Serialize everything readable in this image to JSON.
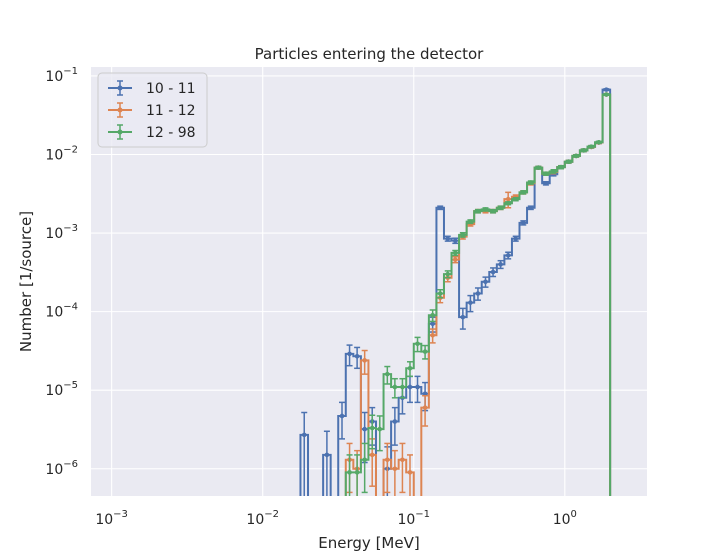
{
  "chart_data": {
    "type": "histogram-step-errorbar",
    "title": "Particles entering the detector",
    "xlabel": "Energy [MeV]",
    "ylabel": "Number [1/source]",
    "xscale": "log",
    "yscale": "log",
    "xlim": [
      0.00073,
      3.5
    ],
    "ylim": [
      4.5e-07,
      0.13
    ],
    "grid": true,
    "legend_position": "top-left",
    "x_ticks": [
      {
        "value": 0.001,
        "base": "10",
        "exp": "−3"
      },
      {
        "value": 0.01,
        "base": "10",
        "exp": "−2"
      },
      {
        "value": 0.1,
        "base": "10",
        "exp": "−1"
      },
      {
        "value": 1,
        "base": "10",
        "exp": "0"
      }
    ],
    "y_ticks": [
      {
        "value": 1e-06,
        "base": "10",
        "exp": "−6"
      },
      {
        "value": 1e-05,
        "base": "10",
        "exp": "−5"
      },
      {
        "value": 0.0001,
        "base": "10",
        "exp": "−4"
      },
      {
        "value": 0.001,
        "base": "10",
        "exp": "−3"
      },
      {
        "value": 0.01,
        "base": "10",
        "exp": "−2"
      },
      {
        "value": 0.1,
        "base": "10",
        "exp": "−1"
      }
    ],
    "bin_edges": [
      0.00398,
      0.00447,
      0.00501,
      0.00562,
      0.00631,
      0.00708,
      0.00794,
      0.00891,
      0.01,
      0.01122,
      0.01259,
      0.01413,
      0.01585,
      0.01778,
      0.01995,
      0.02239,
      0.02512,
      0.02818,
      0.03162,
      0.03548,
      0.03981,
      0.04467,
      0.05012,
      0.05623,
      0.0631,
      0.07079,
      0.07943,
      0.08913,
      0.1,
      0.1122,
      0.1259,
      0.1413,
      0.1585,
      0.1778,
      0.1995,
      0.2239,
      0.2512,
      0.2818,
      0.3162,
      0.3548,
      0.3981,
      0.4467,
      0.5012,
      0.5623,
      0.631,
      0.7079,
      0.7943,
      0.8913,
      1.0,
      1.122,
      1.259,
      1.413,
      1.585,
      1.778,
      1.995,
      2.239
    ],
    "series": [
      {
        "name": "10 - 11",
        "color": "#4c72b0",
        "values": [
          0,
          2.7e-06,
          0,
          0,
          1.5e-06,
          0,
          4.7e-06,
          2.9e-05,
          2.7e-05,
          3.2e-06,
          4e-06,
          0,
          1e-06,
          4e-06,
          8e-06,
          1.1e-05,
          1.1e-05,
          9e-06,
          7e-05,
          0.0021,
          0.00085,
          0.0008,
          8.5e-05,
          0.00013,
          0.00017,
          0.00024,
          0.00032,
          0.0004,
          0.00052,
          0.00085,
          0.00135,
          0.0021,
          0.0068,
          0.0043,
          0.0056,
          0.0069,
          0.0081,
          0.0096,
          0.0113,
          0.0125,
          0.0142,
          0.067,
          0
        ],
        "errors": [
          0,
          2.5e-06,
          0,
          0,
          1.5e-06,
          0,
          2.3e-06,
          8.5e-06,
          8e-06,
          2e-06,
          2e-06,
          0,
          9e-07,
          2e-06,
          3e-06,
          4e-06,
          4e-06,
          3.5e-06,
          1.5e-05,
          0.0001,
          6e-05,
          6e-05,
          2.5e-05,
          3e-05,
          3e-05,
          3.5e-05,
          4e-05,
          4.5e-05,
          5e-05,
          6e-05,
          8e-05,
          0.0001,
          0.00025,
          0.0002,
          0.00025,
          0.00025,
          0.0003,
          0.0003,
          0.0004,
          0.0004,
          0.0004,
          0.0015,
          0
        ],
        "x_start_index": 12
      },
      {
        "name": "11 - 12",
        "color": "#dd8452",
        "values": [
          1.3e-06,
          1e-06,
          2.4e-05,
          1.5e-06,
          0,
          1.3e-06,
          1e-06,
          1.3e-06,
          9e-07,
          0,
          6e-06,
          5e-05,
          0.00015,
          0.00027,
          0.00046,
          0.0009,
          0.0013,
          0.0019,
          0.0019,
          0.0019,
          0.0021,
          0.0027,
          0.0029,
          0.0033,
          0.0043,
          0.0068,
          0.0057,
          0.006,
          0.0069,
          0.0081,
          0.0096,
          0.0113,
          0.0125,
          0.0142,
          0.058,
          0
        ],
        "errors": [
          8e-07,
          7e-07,
          8e-06,
          9e-07,
          0,
          8e-07,
          7e-07,
          8e-07,
          6e-07,
          0,
          2.5e-06,
          1e-05,
          2e-05,
          3e-05,
          4e-05,
          6e-05,
          7e-05,
          9e-05,
          9e-05,
          9e-05,
          0.0001,
          0.0006,
          0.00015,
          0.00015,
          0.0002,
          0.00025,
          0.00025,
          0.0003,
          0.0003,
          0.0003,
          0.0003,
          0.0004,
          0.0004,
          0.0004,
          0.0012,
          0
        ],
        "x_start_index": 19
      },
      {
        "name": "12 - 98",
        "color": "#55a868",
        "values": [
          9e-07,
          9e-07,
          1.3e-06,
          3.3e-06,
          3.2e-06,
          1.6e-05,
          1.1e-05,
          1.1e-05,
          1.9e-05,
          3.9e-05,
          3.1e-05,
          9e-05,
          0.00017,
          0.0003,
          0.00056,
          0.00095,
          0.0014,
          0.0019,
          0.002,
          0.0019,
          0.0021,
          0.0024,
          0.0027,
          0.0033,
          0.0044,
          0.0068,
          0.0057,
          0.0061,
          0.0069,
          0.0081,
          0.0096,
          0.0113,
          0.0126,
          0.0143,
          0.058,
          0
        ],
        "errors": [
          6e-07,
          6e-07,
          8e-07,
          1.5e-06,
          1.5e-06,
          4e-06,
          3e-06,
          3e-06,
          4e-06,
          8e-06,
          6e-06,
          1.5e-05,
          2e-05,
          3e-05,
          4e-05,
          6e-05,
          7e-05,
          9e-05,
          9e-05,
          9e-05,
          0.0001,
          0.0001,
          0.00012,
          0.00015,
          0.0002,
          0.00025,
          0.00025,
          0.0003,
          0.0003,
          0.0003,
          0.0003,
          0.0004,
          0.0004,
          0.0004,
          0.0012,
          0
        ],
        "x_start_index": 19
      }
    ]
  },
  "style": {
    "plot_background": "#eaeaf2",
    "grid_color": "#ffffff",
    "text_color": "#262626"
  }
}
